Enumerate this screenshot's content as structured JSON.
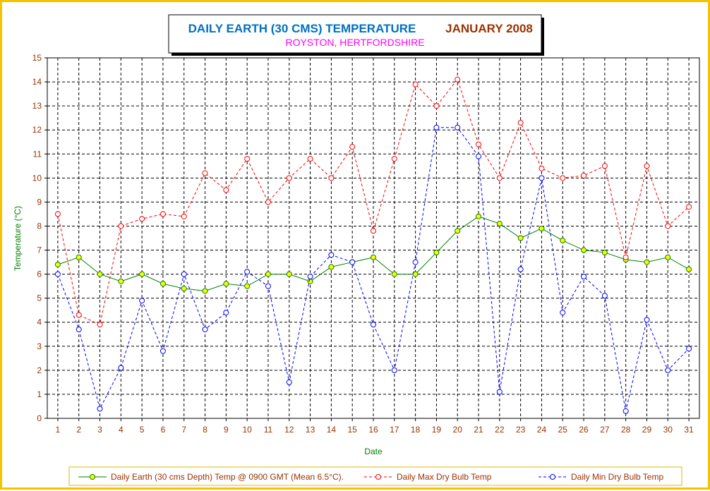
{
  "chart_data": {
    "type": "line",
    "title": "DAILY EARTH (30 CMS) TEMPERATURE",
    "title_suffix": "JANUARY 2008",
    "subtitle": "ROYSTON, HERTFORDSHIRE",
    "xlabel": "Date",
    "ylabel": "Temperature (°C)",
    "ylim": [
      0,
      15
    ],
    "grid": true,
    "legend_position": "bottom",
    "x": [
      "1",
      "2",
      "3",
      "4",
      "5",
      "6",
      "7",
      "8",
      "9",
      "10",
      "11",
      "12",
      "13",
      "14",
      "15",
      "16",
      "17",
      "18",
      "19",
      "20",
      "21",
      "22",
      "23",
      "24",
      "25",
      "26",
      "27",
      "28",
      "29",
      "30",
      "31"
    ],
    "yticks": [
      "0",
      "1",
      "2",
      "3",
      "4",
      "5",
      "6",
      "7",
      "8",
      "9",
      "10",
      "11",
      "12",
      "13",
      "14",
      "15"
    ],
    "series": [
      {
        "name": "Daily Earth (30 cms Depth) Temp @ 0900 GMT (Mean 6.5°C).",
        "color": "#008000",
        "marker_fill": "#ffff00",
        "values": [
          6.4,
          6.7,
          6.0,
          5.7,
          6.0,
          5.6,
          5.4,
          5.3,
          5.6,
          5.5,
          6.0,
          6.0,
          5.7,
          6.3,
          6.5,
          6.7,
          6.0,
          6.0,
          6.9,
          7.8,
          8.4,
          8.1,
          7.5,
          7.9,
          7.4,
          7.0,
          6.9,
          6.6,
          6.5,
          6.7,
          6.2
        ]
      },
      {
        "name": "Daily Max Dry Bulb Temp",
        "color": "#ff0000",
        "marker_fill": "#ffffff",
        "values": [
          8.5,
          4.3,
          3.9,
          8.0,
          8.3,
          8.5,
          8.4,
          10.2,
          9.5,
          10.8,
          9.0,
          10.0,
          10.8,
          10.0,
          11.3,
          7.8,
          10.8,
          13.9,
          13.0,
          14.1,
          11.4,
          10.0,
          12.3,
          10.4,
          10.0,
          10.1,
          10.5,
          6.7,
          10.5,
          8.0,
          8.8
        ]
      },
      {
        "name": "Daily Min Dry Bulb Temp",
        "color": "#0000ff",
        "marker_fill": "#ffffff",
        "values": [
          6.0,
          3.7,
          0.4,
          2.1,
          4.9,
          2.8,
          6.0,
          3.7,
          4.4,
          6.1,
          5.5,
          1.5,
          5.9,
          6.8,
          6.5,
          3.9,
          2.0,
          6.5,
          12.1,
          12.1,
          10.9,
          1.1,
          6.2,
          10.0,
          4.4,
          5.9,
          5.1,
          0.3,
          4.1,
          2.0,
          2.9
        ]
      }
    ]
  }
}
